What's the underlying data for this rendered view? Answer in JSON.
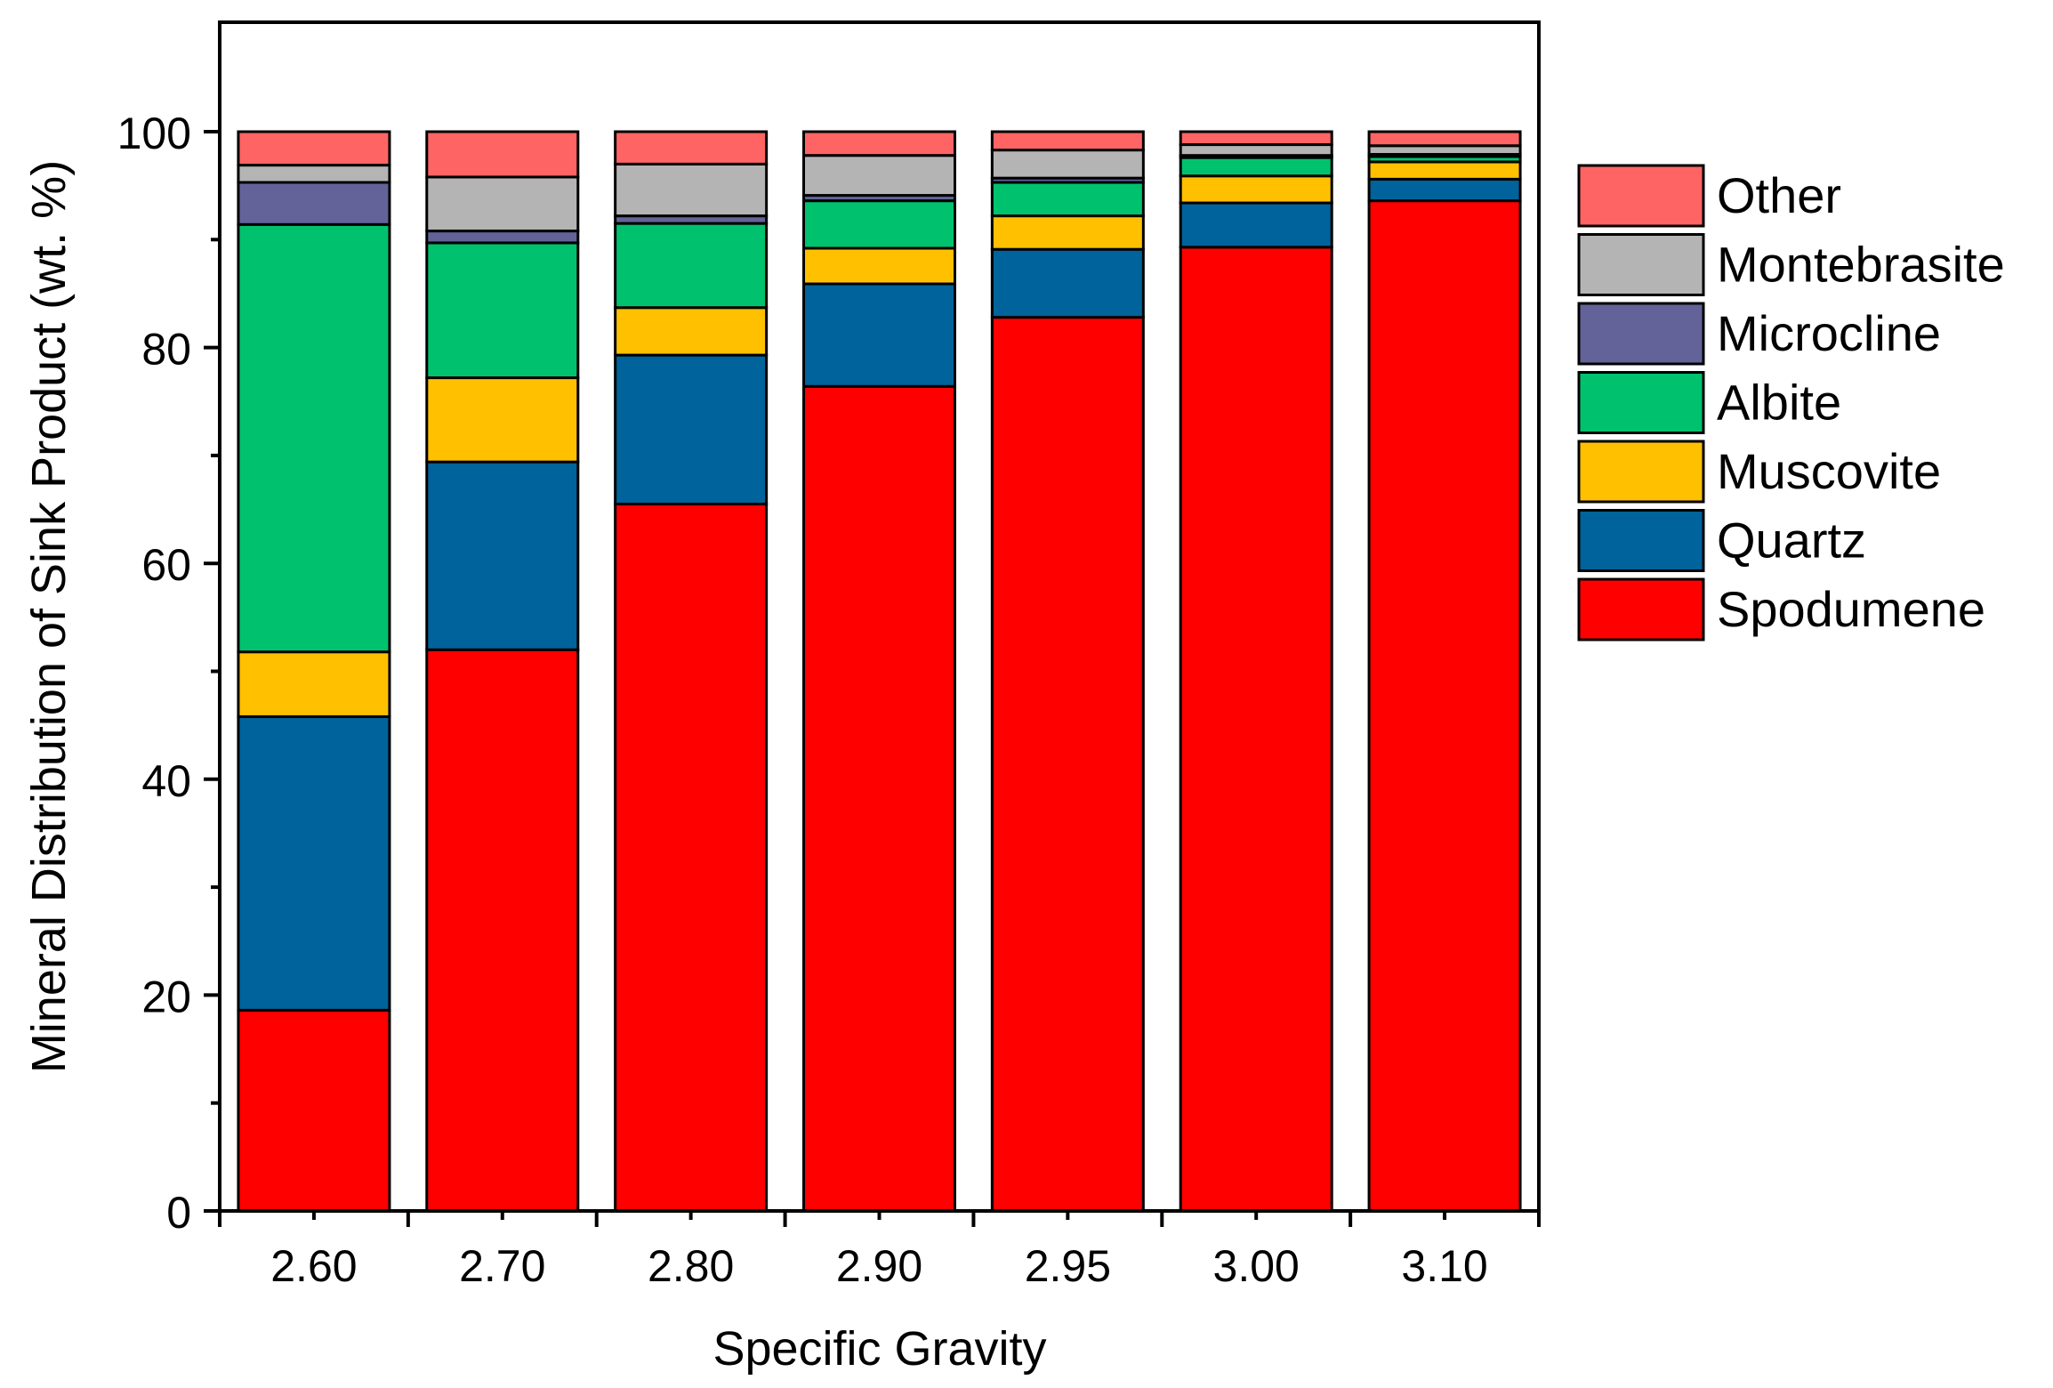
{
  "chart_data": {
    "type": "bar",
    "stacked": true,
    "title": "",
    "xlabel": "Specific Gravity",
    "ylabel": "Mineral Distribution of Sink Product (wt. %)",
    "ylim": [
      0,
      110
    ],
    "yticks": [
      0,
      20,
      40,
      60,
      80,
      100
    ],
    "ytick_labels": [
      "0",
      "20",
      "40",
      "60",
      "80",
      "100"
    ],
    "categories": [
      "2.60",
      "2.70",
      "2.80",
      "2.90",
      "2.95",
      "3.00",
      "3.10"
    ],
    "legend_position": "right",
    "series": [
      {
        "name": "Spodumene",
        "color": "#ff0000",
        "values": [
          18.6,
          52.0,
          65.5,
          76.4,
          82.8,
          89.3,
          93.6
        ]
      },
      {
        "name": "Quartz",
        "color": "#00639b",
        "values": [
          27.2,
          17.4,
          13.8,
          9.5,
          6.3,
          4.1,
          2.0
        ]
      },
      {
        "name": "Muscovite",
        "color": "#ffc000",
        "values": [
          6.0,
          7.8,
          4.4,
          3.3,
          3.1,
          2.5,
          1.6
        ]
      },
      {
        "name": "Albite",
        "color": "#00c26e",
        "values": [
          39.6,
          12.5,
          7.8,
          4.4,
          3.1,
          1.7,
          0.5
        ]
      },
      {
        "name": "Microcline",
        "color": "#636399",
        "values": [
          3.9,
          1.1,
          0.7,
          0.5,
          0.4,
          0.2,
          0.2
        ]
      },
      {
        "name": "Montebrasite",
        "color": "#b4b4b4",
        "values": [
          1.6,
          5.0,
          4.8,
          3.7,
          2.6,
          1.0,
          0.8
        ]
      },
      {
        "name": "Other",
        "color": "#ff6464",
        "values": [
          3.1,
          4.2,
          3.0,
          2.2,
          1.7,
          1.2,
          1.3
        ]
      }
    ]
  }
}
